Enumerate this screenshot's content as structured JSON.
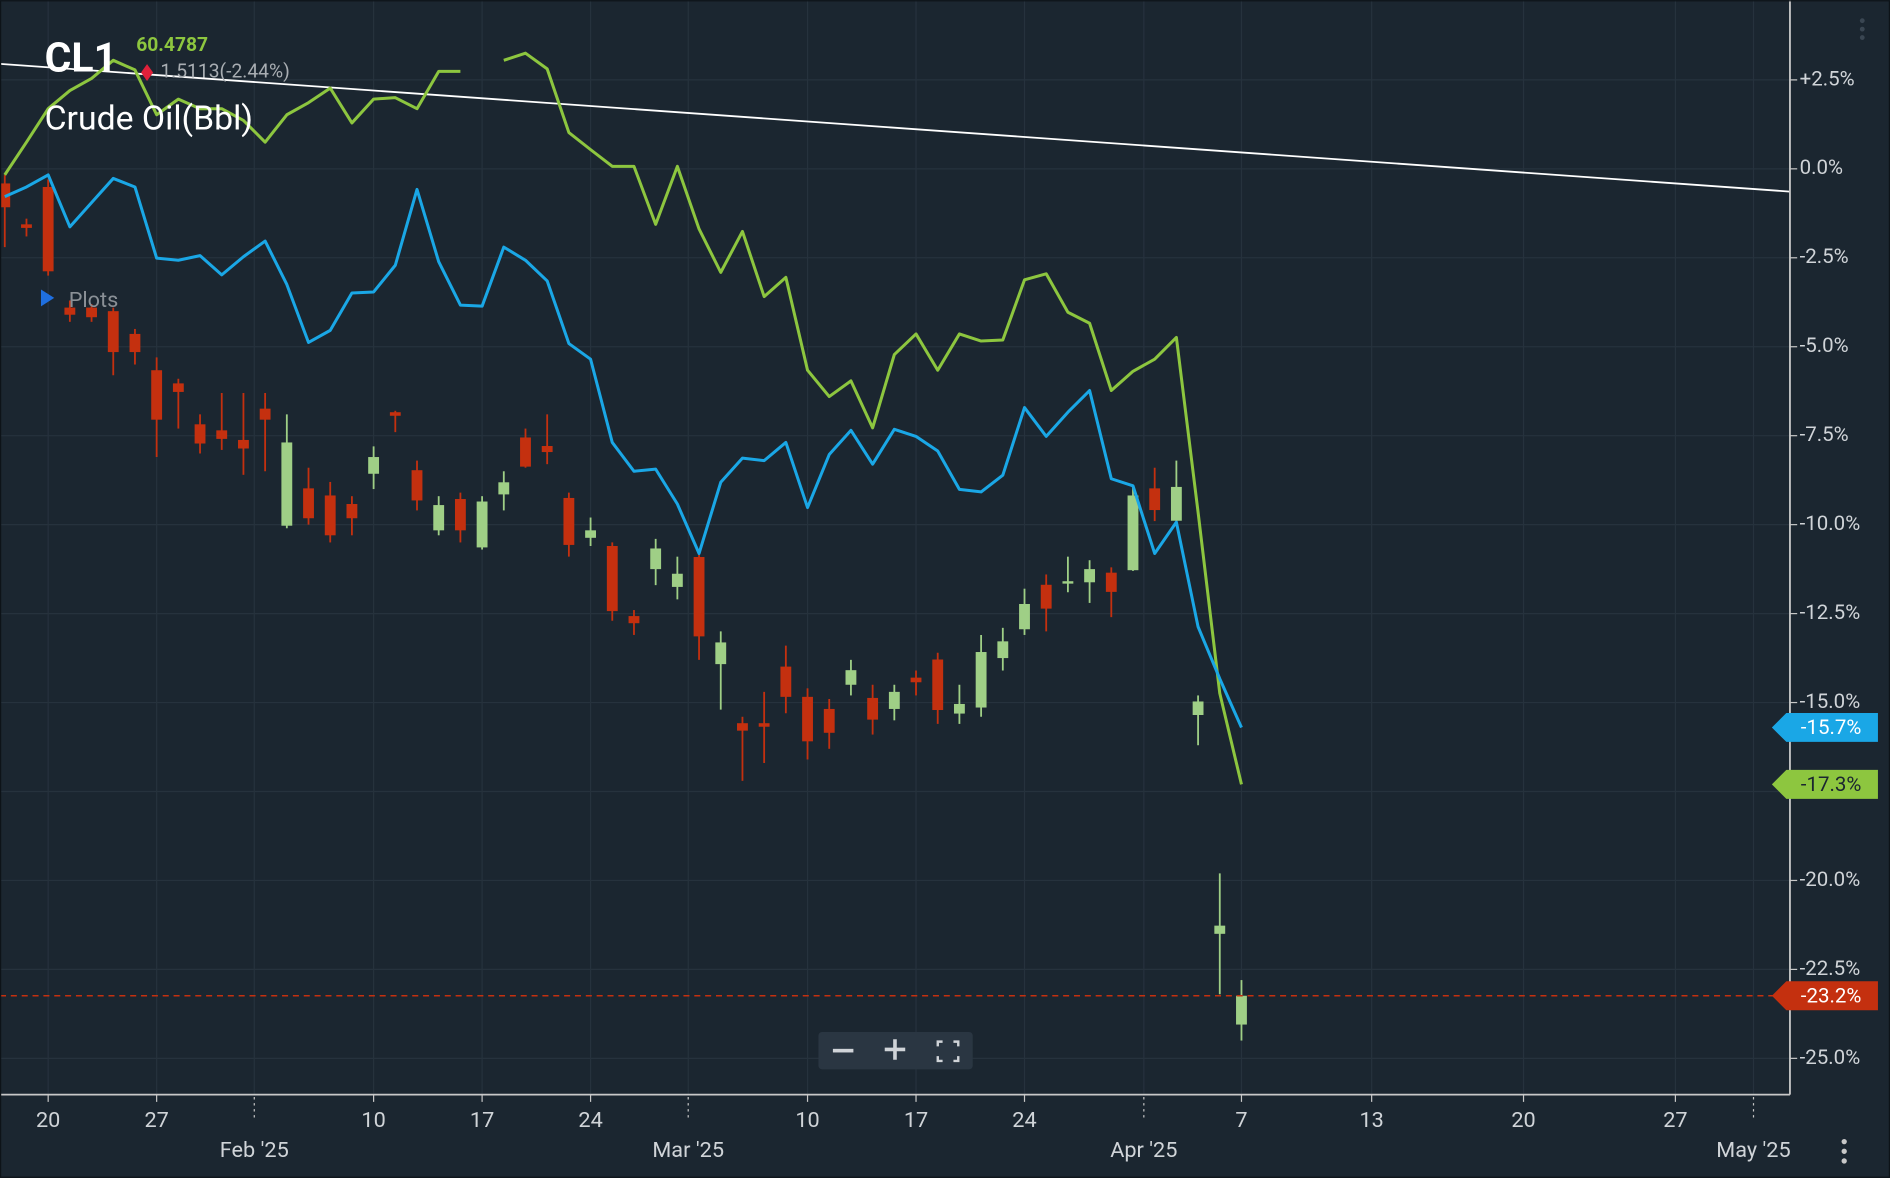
{
  "header": {
    "symbol": "CL1",
    "price": "60.4787",
    "change": "1.5113(-2.44%)",
    "name": "Crude Oil(Bbl)",
    "plots": "Plots"
  },
  "chart_data": {
    "type": "candlestick",
    "x": [
      -2,
      -1,
      0,
      1,
      2,
      3,
      4,
      5,
      6,
      7,
      8,
      9,
      10,
      11,
      12,
      13,
      14,
      15,
      16,
      17,
      18,
      19,
      20,
      21,
      22,
      23,
      24,
      25,
      26,
      27,
      28,
      29,
      30,
      31,
      32,
      33,
      34,
      35,
      36,
      37,
      38,
      39,
      40,
      41,
      42,
      43,
      44,
      45,
      46,
      47,
      48,
      49,
      50,
      51,
      52,
      53,
      54,
      55
    ],
    "xlim": [
      -2.22,
      80.28
    ],
    "ylim": [
      -26.02,
      4.74
    ],
    "yticks": [
      {
        "value": 2.5,
        "label": "+2.5%"
      },
      {
        "value": 0,
        "label": "0.0%"
      },
      {
        "value": -2.5,
        "label": "-2.5%"
      },
      {
        "value": -5,
        "label": "-5.0%"
      },
      {
        "value": -7.5,
        "label": "-7.5%"
      },
      {
        "value": -10,
        "label": "-10.0%"
      },
      {
        "value": -12.5,
        "label": "-12.5%"
      },
      {
        "value": -15,
        "label": "-15.0%"
      },
      {
        "value": -17.5,
        "label": "-17.5%"
      },
      {
        "value": -20,
        "label": "-20.0%"
      },
      {
        "value": -22.5,
        "label": "-22.5%"
      },
      {
        "value": -25,
        "label": "-25.0%"
      }
    ],
    "xticks": [
      {
        "value": 0,
        "label": "20"
      },
      {
        "value": 5,
        "label": "27"
      },
      {
        "value": 15,
        "label": "10"
      },
      {
        "value": 20,
        "label": "17"
      },
      {
        "value": 25,
        "label": "24"
      },
      {
        "value": 35,
        "label": "10"
      },
      {
        "value": 40,
        "label": "17"
      },
      {
        "value": 45,
        "label": "24"
      },
      {
        "value": 55,
        "label": "7"
      },
      {
        "value": 61,
        "label": "13"
      },
      {
        "value": 68,
        "label": "20"
      },
      {
        "value": 75,
        "label": "27"
      }
    ],
    "xticks_month": [
      {
        "value": 9.5,
        "label": "Feb '25"
      },
      {
        "value": 29.5,
        "label": "Mar '25"
      },
      {
        "value": 50.5,
        "label": "Apr '25"
      },
      {
        "value": 78.6,
        "label": "May '25"
      }
    ],
    "grid": true,
    "trendline": {
      "x": [
        -2.22,
        80.28
      ],
      "values": [
        2.95,
        -0.64
      ],
      "color": "#ffffff"
    },
    "series": [
      {
        "type": "candlestick",
        "up_color": "#9fcf86",
        "down_color": "#c4300f",
        "last_value_label": "-23.2%",
        "open": [
          -0.41,
          -1.56,
          -0.51,
          -3.9,
          -3.9,
          -4.0,
          -4.64,
          -5.66,
          -6.03,
          -7.18,
          -7.35,
          -7.62,
          -6.74,
          -10.03,
          -8.98,
          -9.18,
          -9.42,
          -8.57,
          -6.84,
          -8.47,
          -10.16,
          -9.28,
          -10.64,
          -9.15,
          -7.55,
          -7.79,
          -9.25,
          -10.37,
          -10.6,
          -12.57,
          -11.25,
          -11.75,
          -10.91,
          -13.92,
          -15.58,
          -15.58,
          -13.99,
          -14.84,
          -15.18,
          -14.5,
          -14.87,
          -15.18,
          -14.3,
          -13.79,
          -15.31,
          -15.14,
          -13.75,
          -12.94,
          -11.69,
          -11.65,
          -11.62,
          -11.35,
          -11.28,
          -8.98,
          -9.89,
          -15.35,
          -21.5,
          -24.05
        ],
        "high": [
          -0.17,
          -1.4,
          -0.3,
          -3.7,
          -3.8,
          -3.9,
          -4.5,
          -5.3,
          -5.9,
          -6.9,
          -6.3,
          -6.3,
          -6.3,
          -6.9,
          -8.4,
          -8.8,
          -9.2,
          -7.8,
          -6.8,
          -8.2,
          -9.2,
          -9.1,
          -9.2,
          -8.5,
          -7.3,
          -6.9,
          -9.1,
          -9.8,
          -10.5,
          -12.4,
          -10.4,
          -10.9,
          -10.7,
          -13.0,
          -15.4,
          -14.7,
          -13.4,
          -14.6,
          -14.9,
          -13.8,
          -14.5,
          -14.5,
          -14.1,
          -13.6,
          -14.5,
          -13.1,
          -12.9,
          -11.8,
          -11.4,
          -10.9,
          -11.0,
          -11.2,
          -8.9,
          -8.4,
          -8.2,
          -14.8,
          -19.8,
          -22.8
        ],
        "low": [
          -2.2,
          -1.9,
          -3.0,
          -4.3,
          -4.3,
          -5.8,
          -5.5,
          -8.1,
          -7.3,
          -8.0,
          -7.9,
          -8.6,
          -8.5,
          -10.1,
          -10.0,
          -10.5,
          -10.3,
          -9.0,
          -7.4,
          -9.6,
          -10.3,
          -10.5,
          -10.7,
          -9.6,
          -8.4,
          -8.3,
          -10.9,
          -10.6,
          -12.7,
          -13.1,
          -11.7,
          -12.1,
          -13.8,
          -15.2,
          -17.2,
          -16.7,
          -15.3,
          -16.6,
          -16.3,
          -14.8,
          -15.9,
          -15.5,
          -14.8,
          -15.6,
          -15.6,
          -15.4,
          -14.1,
          -13.1,
          -13.0,
          -11.9,
          -12.2,
          -12.6,
          -11.3,
          -9.9,
          -9.9,
          -16.2,
          -23.2,
          -24.5
        ],
        "close": [
          -1.08,
          -1.66,
          -2.88,
          -4.1,
          -4.17,
          -5.15,
          -5.15,
          -7.05,
          -6.27,
          -7.72,
          -7.59,
          -7.86,
          -7.05,
          -7.69,
          -9.82,
          -10.3,
          -9.82,
          -8.1,
          -6.94,
          -9.32,
          -9.45,
          -10.16,
          -9.35,
          -8.81,
          -8.37,
          -7.96,
          -10.57,
          -10.16,
          -12.43,
          -12.77,
          -10.67,
          -11.38,
          -13.14,
          -13.31,
          -15.79,
          -15.68,
          -14.84,
          -16.09,
          -15.85,
          -14.09,
          -15.48,
          -14.7,
          -14.43,
          -15.21,
          -15.04,
          -13.58,
          -13.28,
          -12.23,
          -12.36,
          -11.59,
          -11.25,
          -11.89,
          -9.18,
          -9.59,
          -8.94,
          -14.97,
          -21.27,
          -23.24
        ]
      },
      {
        "type": "line",
        "color": "#8dc63f",
        "last_value_label": "-17.3%",
        "values": [
          -0.17,
          0.75,
          1.69,
          2.2,
          2.54,
          3.05,
          2.78,
          1.52,
          1.96,
          1.69,
          1.69,
          1.36,
          0.75,
          1.52,
          1.86,
          2.27,
          1.29,
          1.96,
          2.0,
          1.69,
          2.74,
          2.74,
          null,
          3.05,
          3.25,
          2.81,
          1.02,
          0.54,
          0.07,
          0.07,
          -1.56,
          0.07,
          -1.69,
          -2.91,
          -1.76,
          -3.59,
          -3.05,
          -5.66,
          -6.4,
          -5.96,
          -7.28,
          -5.22,
          -4.64,
          -5.66,
          -4.64,
          -4.84,
          -4.81,
          -3.12,
          -2.95,
          -4.03,
          -4.34,
          -6.23,
          -5.69,
          -5.35,
          -4.74,
          -9.65,
          -14.74,
          -17.3
        ]
      },
      {
        "type": "line",
        "color": "#1aa7e6",
        "last_value_label": "-15.7%",
        "values": [
          -0.78,
          -0.51,
          -0.17,
          -1.63,
          -0.95,
          -0.27,
          -0.51,
          -2.51,
          -2.57,
          -2.44,
          -2.98,
          -2.47,
          -2.03,
          -3.25,
          -4.88,
          -4.54,
          -3.49,
          -3.46,
          -2.71,
          -0.58,
          -2.61,
          -3.83,
          -3.86,
          -2.2,
          -2.57,
          -3.15,
          -4.91,
          -5.35,
          -7.69,
          -8.5,
          -8.44,
          -9.42,
          -10.81,
          -8.81,
          -8.13,
          -8.2,
          -7.69,
          -9.52,
          -8.03,
          -7.35,
          -8.3,
          -7.32,
          -7.52,
          -7.93,
          -9.01,
          -9.08,
          -8.61,
          -6.71,
          -7.52,
          -6.84,
          -6.23,
          -8.71,
          -8.91,
          -10.81,
          -9.93,
          -12.87,
          -14.33,
          -15.7
        ]
      }
    ]
  }
}
